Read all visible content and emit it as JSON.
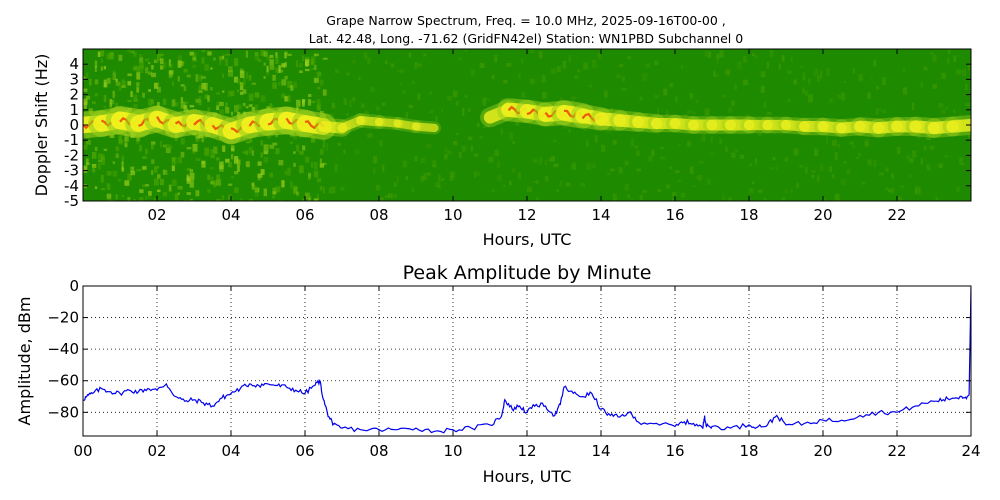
{
  "figure": {
    "title_line1": "Grape Narrow Spectrum, Freq. = 10.0 MHz, 2025-09-16T00-00 ,",
    "title_line2": "Lat.  42.48, Long. -71.62 (GridFN42el) Station: WN1PBD Subchannel 0"
  },
  "chart_data": [
    {
      "type": "heatmap",
      "title": "",
      "xlabel": "Hours, UTC",
      "ylabel": "Doppler Shift (Hz)",
      "xlim": [
        0,
        24
      ],
      "ylim": [
        -5,
        5
      ],
      "x_ticks": [
        2,
        4,
        6,
        8,
        10,
        12,
        14,
        16,
        18,
        20,
        22
      ],
      "x_tick_labels": [
        "02",
        "04",
        "06",
        "08",
        "10",
        "12",
        "14",
        "16",
        "18",
        "20",
        "22"
      ],
      "y_ticks": [
        -5,
        -4,
        -3,
        -2,
        -1,
        0,
        1,
        2,
        3,
        4
      ],
      "y_tick_labels": [
        "-5",
        "-4",
        "-3",
        "-2",
        "-1",
        "0",
        "1",
        "2",
        "3",
        "4"
      ],
      "colors": {
        "background": "#1e8a00",
        "mid": "#9ccf1a",
        "high": "#f2f21e",
        "peak": "#f04a00"
      },
      "doppler_trace": {
        "hours": [
          0.0,
          0.5,
          1.0,
          1.5,
          2.0,
          2.5,
          3.0,
          3.5,
          4.0,
          4.5,
          5.0,
          5.5,
          6.0,
          6.5,
          7.0,
          7.5,
          8.0,
          8.5,
          9.0,
          9.5,
          10.0,
          10.5,
          11.0,
          11.5,
          12.0,
          12.5,
          13.0,
          13.5,
          14.0,
          14.5,
          15.0,
          15.5,
          16.0,
          16.5,
          17.0,
          17.5,
          18.0,
          18.5,
          19.0,
          19.5,
          20.0,
          20.5,
          21.0,
          21.5,
          22.0,
          22.5,
          23.0,
          23.5,
          24.0
        ],
        "shift_hz": [
          0.0,
          0.1,
          0.3,
          0.1,
          0.4,
          0.0,
          0.2,
          0.0,
          -0.4,
          0.0,
          0.2,
          0.3,
          0.1,
          -0.1,
          -0.2,
          0.3,
          0.2,
          0.1,
          -0.1,
          -0.2,
          null,
          null,
          0.5,
          1.0,
          0.9,
          0.7,
          0.8,
          0.6,
          0.4,
          0.3,
          0.2,
          0.1,
          0.1,
          0.0,
          0.0,
          0.0,
          0.0,
          0.0,
          0.0,
          -0.1,
          -0.1,
          -0.2,
          -0.1,
          -0.2,
          -0.1,
          -0.1,
          -0.2,
          -0.1,
          0.0
        ],
        "intensity": [
          0.9,
          0.9,
          1.0,
          0.9,
          0.9,
          0.85,
          0.85,
          0.85,
          0.9,
          0.9,
          0.95,
          0.95,
          0.9,
          0.5,
          0.35,
          0.35,
          0.3,
          0.3,
          0.3,
          0.2,
          0.0,
          0.0,
          0.6,
          0.75,
          0.75,
          0.8,
          0.85,
          0.75,
          0.65,
          0.6,
          0.55,
          0.5,
          0.5,
          0.5,
          0.5,
          0.5,
          0.45,
          0.45,
          0.45,
          0.5,
          0.5,
          0.5,
          0.55,
          0.55,
          0.55,
          0.6,
          0.6,
          0.6,
          0.6
        ]
      }
    },
    {
      "type": "line",
      "title": "Peak Amplitude by Minute",
      "xlabel": "Hours, UTC",
      "ylabel": "Amplitude, dBm",
      "xlim": [
        0,
        24
      ],
      "ylim": [
        -95,
        0
      ],
      "grid": true,
      "x_ticks": [
        0,
        2,
        4,
        6,
        8,
        10,
        12,
        14,
        16,
        18,
        20,
        22,
        24
      ],
      "x_tick_labels": [
        "00",
        "02",
        "04",
        "06",
        "08",
        "10",
        "12",
        "14",
        "16",
        "18",
        "20",
        "22",
        "24"
      ],
      "y_ticks": [
        0,
        -20,
        -40,
        -60,
        -80
      ],
      "y_tick_labels": [
        "0",
        "−20",
        "−40",
        "−60",
        "−80"
      ],
      "line_color": "#0000ee",
      "series": [
        {
          "x": [
            0.0,
            0.1,
            0.25,
            0.5,
            0.75,
            1.0,
            1.25,
            1.5,
            1.75,
            2.0,
            2.25,
            2.5,
            2.75,
            3.0,
            3.25,
            3.5,
            3.75,
            4.0,
            4.25,
            4.5,
            4.75,
            5.0,
            5.25,
            5.5,
            5.75,
            6.0,
            6.25,
            6.4,
            6.5,
            6.6,
            6.75,
            7.0,
            7.5,
            8.0,
            8.5,
            9.0,
            9.5,
            10.0,
            10.5,
            11.0,
            11.3,
            11.4,
            11.6,
            11.8,
            12.0,
            12.25,
            12.5,
            12.75,
            12.9,
            13.0,
            13.25,
            13.5,
            13.75,
            14.0,
            14.25,
            14.5,
            14.75,
            15.0,
            15.5,
            16.0,
            16.25,
            16.5,
            16.75,
            16.8,
            16.85,
            17.0,
            17.5,
            18.0,
            18.25,
            18.5,
            18.75,
            19.0,
            19.5,
            20.0,
            20.5,
            21.0,
            21.5,
            22.0,
            22.5,
            23.0,
            23.25,
            23.5,
            23.75,
            23.9,
            23.95,
            24.0
          ],
          "y": [
            -72,
            -70,
            -68,
            -65,
            -67,
            -68,
            -66,
            -67,
            -65,
            -66,
            -62,
            -70,
            -73,
            -72,
            -74,
            -76,
            -71,
            -68,
            -65,
            -62,
            -63,
            -62,
            -63,
            -64,
            -66,
            -68,
            -63,
            -60,
            -72,
            -80,
            -88,
            -90,
            -91,
            -91,
            -91,
            -90,
            -92,
            -91,
            -90,
            -88,
            -83,
            -72,
            -78,
            -76,
            -80,
            -75,
            -76,
            -82,
            -75,
            -64,
            -68,
            -70,
            -68,
            -78,
            -82,
            -83,
            -80,
            -86,
            -87,
            -89,
            -86,
            -87,
            -90,
            -82,
            -89,
            -89,
            -90,
            -88,
            -89,
            -88,
            -82,
            -88,
            -87,
            -85,
            -85,
            -82,
            -80,
            -80,
            -76,
            -73,
            -72,
            -71,
            -70,
            -70,
            -69,
            -1
          ]
        }
      ]
    }
  ]
}
